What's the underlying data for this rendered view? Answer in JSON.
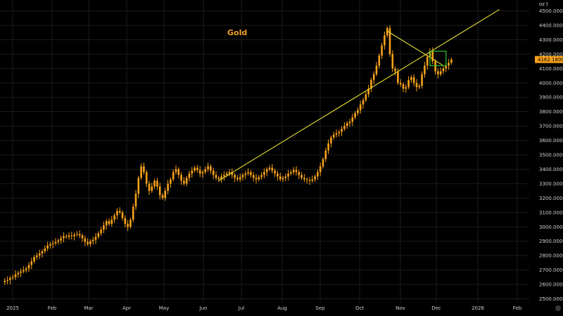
{
  "chart_data": {
    "type": "candlestick",
    "title": "Gold",
    "unit_label": "oz t",
    "y_tick_labels": [
      "4500.0000",
      "4400.0000",
      "4300.0000",
      "4200.0000",
      "4100.0000",
      "4000.0000",
      "3900.0000",
      "3800.0000",
      "3700.0000",
      "3600.0000",
      "3500.0000",
      "3400.0000",
      "3300.0000",
      "3200.0000",
      "3100.0000",
      "3000.0000",
      "2900.0000",
      "2800.0000",
      "2700.0000",
      "2600.0000",
      "2500.0000"
    ],
    "ylim": [
      2480,
      4550
    ],
    "x_tick_labels": [
      "2025",
      "Feb",
      "Mar",
      "Apr",
      "May",
      "Jun",
      "Jul",
      "Aug",
      "Sep",
      "Oct",
      "Nov",
      "Dec",
      "2026",
      "Feb"
    ],
    "last_price_label": "4162.1800",
    "last_price": 4162.18,
    "grid": true,
    "colors": {
      "background": "#000000",
      "grid": "#1c1c1c",
      "candle": "#f7a21c",
      "trendline": "#e6e02c",
      "box": "#32c832",
      "title": "#f0a020",
      "price_tag_bg": "#f7a21c",
      "price_tag_text": "#000000"
    },
    "close_series": [
      2615,
      2625,
      2630,
      2645,
      2650,
      2670,
      2680,
      2690,
      2700,
      2710,
      2735,
      2760,
      2790,
      2800,
      2815,
      2830,
      2850,
      2870,
      2880,
      2885,
      2895,
      2905,
      2920,
      2935,
      2930,
      2940,
      2935,
      2945,
      2950,
      2940,
      2920,
      2895,
      2880,
      2900,
      2910,
      2930,
      2955,
      2980,
      3010,
      3040,
      3020,
      3050,
      3080,
      3110,
      3100,
      3060,
      3020,
      3000,
      3050,
      3140,
      3230,
      3340,
      3420,
      3380,
      3300,
      3250,
      3280,
      3320,
      3280,
      3220,
      3200,
      3250,
      3300,
      3330,
      3380,
      3400,
      3360,
      3320,
      3300,
      3340,
      3370,
      3390,
      3410,
      3395,
      3370,
      3380,
      3400,
      3420,
      3390,
      3360,
      3340,
      3330,
      3350,
      3360,
      3370,
      3380,
      3360,
      3340,
      3330,
      3345,
      3360,
      3370,
      3380,
      3360,
      3340,
      3330,
      3345,
      3360,
      3380,
      3400,
      3410,
      3390,
      3370,
      3350,
      3330,
      3340,
      3350,
      3370,
      3380,
      3395,
      3380,
      3360,
      3340,
      3330,
      3325,
      3320,
      3330,
      3350,
      3380,
      3420,
      3470,
      3530,
      3580,
      3620,
      3640,
      3650,
      3660,
      3680,
      3700,
      3720,
      3730,
      3760,
      3790,
      3810,
      3850,
      3880,
      3920,
      3960,
      4020,
      4060,
      4120,
      4190,
      4260,
      4330,
      4380,
      4200,
      4100,
      4080,
      4000,
      3990,
      3960,
      3970,
      4020,
      4040,
      4000,
      3970,
      3980,
      4060,
      4120,
      4180,
      4220,
      4150,
      4080,
      4060,
      4080,
      4100,
      4120,
      4140,
      4162
    ],
    "annotations": {
      "support_line": [
        {
          "x_index": 81,
          "price": 3320
        },
        {
          "x_index": 186,
          "price": 4510
        }
      ],
      "upper_wedge_line": [
        {
          "x_index": 144,
          "price": 4360
        },
        {
          "x_index": 165,
          "price": 4120
        }
      ],
      "highlight_box": {
        "x_index_start": 160,
        "x_index_end": 166,
        "price_low": 4120,
        "price_high": 4220
      }
    }
  }
}
